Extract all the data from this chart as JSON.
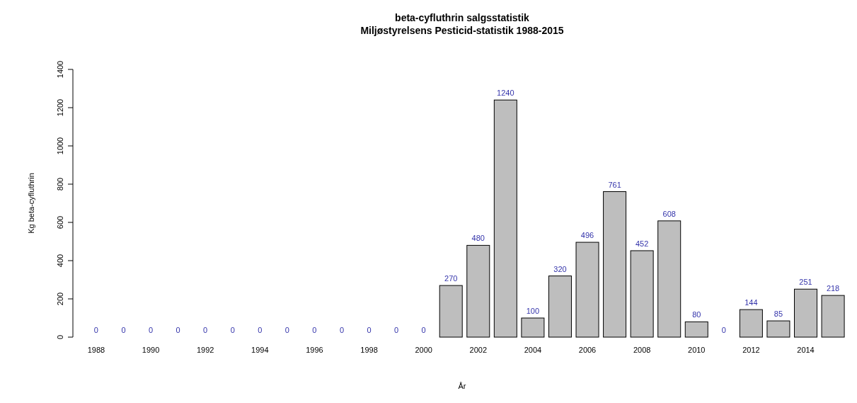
{
  "chart_data": {
    "type": "bar",
    "title": "beta-cyfluthrin  salgsstatistik",
    "subtitle": "Miljøstyrelsens Pesticid-statistik 1988-2015",
    "xlabel": "År",
    "ylabel": "Kg  beta-cyfluthrin",
    "categories": [
      "1988",
      null,
      "1990",
      null,
      "1992",
      null,
      "1994",
      null,
      "1996",
      null,
      "1998",
      null,
      "2000",
      null,
      "2002",
      null,
      "2004",
      null,
      "2006",
      null,
      "2008",
      null,
      "2010",
      null,
      "2012",
      null,
      "2014",
      null
    ],
    "values": [
      0,
      0,
      0,
      0,
      0,
      0,
      0,
      0,
      0,
      0,
      0,
      0,
      0,
      270,
      480,
      1240,
      100,
      320,
      496,
      761,
      452,
      608,
      80,
      0,
      144,
      85,
      251,
      218
    ],
    "color": "#bebebe",
    "ylim": [
      0,
      1400
    ],
    "yticks": [
      0,
      200,
      400,
      600,
      800,
      1000,
      1200,
      1400
    ],
    "data_labels": true,
    "grid": false
  }
}
